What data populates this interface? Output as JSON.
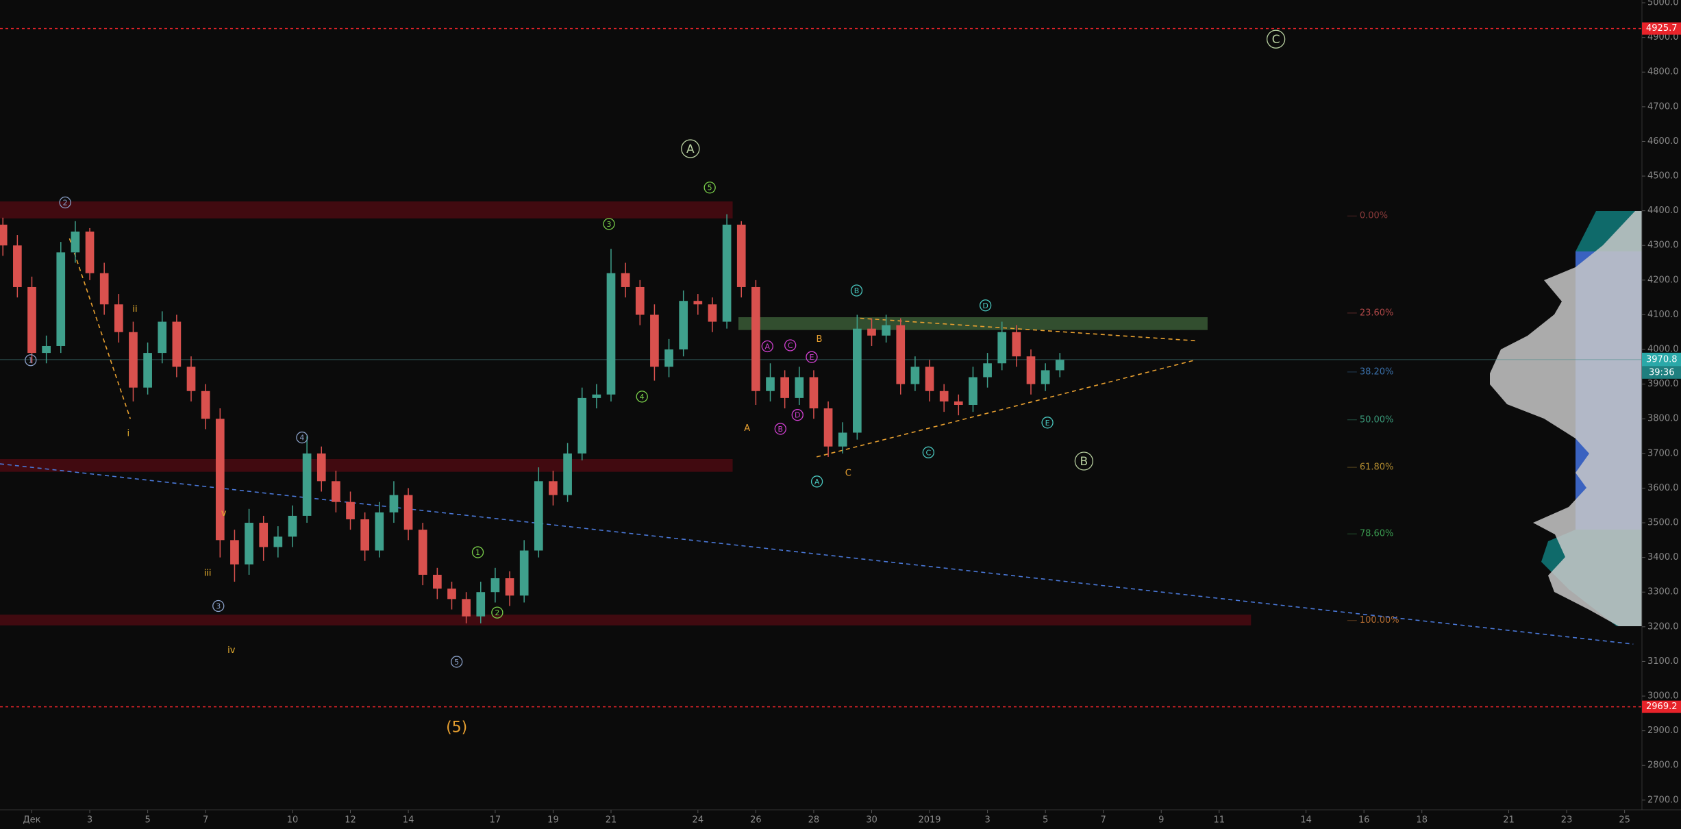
{
  "chart_data": {
    "type": "candlestick",
    "up_color": "#3fa08c",
    "down_color": "#d9514e",
    "background": "#0b0b0b",
    "x": [
      -1,
      -0.5,
      0,
      0.5,
      1,
      1.5,
      2,
      2.5,
      3,
      3.5,
      4,
      4.5,
      5,
      5.5,
      6,
      6.5,
      7,
      7.5,
      8,
      8.5,
      9,
      9.5,
      10,
      10.5,
      11,
      11.5,
      12,
      12.5,
      13,
      13.5,
      14,
      14.5,
      15,
      15.5,
      16,
      16.5,
      17,
      17.5,
      18,
      18.5,
      19,
      19.5,
      20,
      20.5,
      21,
      21.5,
      22,
      22.5,
      23,
      23.5,
      24,
      24.5,
      25,
      25.5,
      26,
      26.5,
      27,
      27.5,
      28,
      28.5,
      29,
      29.5,
      30,
      30.5,
      31,
      31.5,
      32,
      32.5,
      33,
      33.5,
      34,
      34.5,
      35,
      35.5
    ],
    "open": [
      4360,
      4300,
      4180,
      3990,
      4010,
      4280,
      4340,
      4220,
      4130,
      4050,
      3890,
      3990,
      4080,
      3950,
      3880,
      3800,
      3450,
      3380,
      3500,
      3430,
      3460,
      3520,
      3700,
      3620,
      3560,
      3510,
      3420,
      3530,
      3580,
      3480,
      3350,
      3310,
      3280,
      3230,
      3300,
      3340,
      3290,
      3420,
      3620,
      3580,
      3700,
      3860,
      3870,
      4220,
      4180,
      4100,
      3950,
      4000,
      4140,
      4130,
      4080,
      4360,
      4180,
      3880,
      3920,
      3860,
      3920,
      3830,
      3720,
      3760,
      4060,
      4040,
      4070,
      3900,
      3950,
      3880,
      3850,
      3840,
      3920,
      3960,
      4050,
      3980,
      3900,
      3940
    ],
    "high": [
      4380,
      4330,
      4210,
      4040,
      4310,
      4370,
      4350,
      4250,
      4160,
      4080,
      4020,
      4110,
      4100,
      3980,
      3900,
      3830,
      3480,
      3540,
      3520,
      3490,
      3550,
      3750,
      3720,
      3650,
      3590,
      3530,
      3560,
      3620,
      3600,
      3500,
      3370,
      3330,
      3300,
      3330,
      3370,
      3360,
      3450,
      3660,
      3650,
      3730,
      3890,
      3900,
      4290,
      4250,
      4200,
      4130,
      4030,
      4170,
      4160,
      4150,
      4390,
      4370,
      4200,
      3960,
      3940,
      3950,
      3940,
      3850,
      3790,
      4100,
      4090,
      4100,
      4090,
      3980,
      3970,
      3900,
      3870,
      3950,
      3990,
      4080,
      4070,
      4000,
      3960,
      3990
    ],
    "low": [
      4270,
      4150,
      3960,
      3960,
      3990,
      4250,
      4200,
      4100,
      4020,
      3850,
      3870,
      3960,
      3920,
      3850,
      3770,
      3400,
      3330,
      3350,
      3390,
      3400,
      3430,
      3500,
      3590,
      3530,
      3480,
      3390,
      3400,
      3500,
      3450,
      3320,
      3280,
      3250,
      3210,
      3210,
      3270,
      3260,
      3270,
      3400,
      3550,
      3560,
      3680,
      3830,
      3850,
      4150,
      4070,
      3910,
      3920,
      3980,
      4100,
      4050,
      4060,
      4150,
      3840,
      3850,
      3830,
      3840,
      3800,
      3690,
      3700,
      3740,
      4010,
      4020,
      3870,
      3880,
      3850,
      3820,
      3810,
      3820,
      3890,
      3940,
      3950,
      3870,
      3880,
      3920
    ],
    "close": [
      4300,
      4180,
      3990,
      4010,
      4280,
      4340,
      4220,
      4130,
      4050,
      3890,
      3990,
      4080,
      3950,
      3880,
      3800,
      3450,
      3380,
      3500,
      3430,
      3460,
      3520,
      3700,
      3620,
      3560,
      3510,
      3420,
      3530,
      3580,
      3480,
      3350,
      3310,
      3280,
      3230,
      3300,
      3340,
      3290,
      3420,
      3620,
      3580,
      3700,
      3860,
      3870,
      4220,
      4180,
      4100,
      3950,
      4000,
      4140,
      4130,
      4080,
      4360,
      4180,
      3880,
      3920,
      3860,
      3920,
      3830,
      3720,
      3760,
      4060,
      4040,
      4070,
      3900,
      3950,
      3880,
      3850,
      3840,
      3920,
      3960,
      4050,
      3980,
      3900,
      3940,
      3970
    ],
    "xlim": [
      -1.1,
      55.6
    ],
    "xticks": [
      {
        "value": 0,
        "label": "Дек"
      },
      {
        "value": 2,
        "label": "3"
      },
      {
        "value": 4,
        "label": "5"
      },
      {
        "value": 6,
        "label": "7"
      },
      {
        "value": 9,
        "label": "10"
      },
      {
        "value": 11,
        "label": "12"
      },
      {
        "value": 13,
        "label": "14"
      },
      {
        "value": 16,
        "label": "17"
      },
      {
        "value": 18,
        "label": "19"
      },
      {
        "value": 20,
        "label": "21"
      },
      {
        "value": 23,
        "label": "24"
      },
      {
        "value": 25,
        "label": "26"
      },
      {
        "value": 27,
        "label": "28"
      },
      {
        "value": 29,
        "label": "30"
      },
      {
        "value": 31,
        "label": "2019"
      },
      {
        "value": 33,
        "label": "3"
      },
      {
        "value": 35,
        "label": "5"
      },
      {
        "value": 37,
        "label": "7"
      },
      {
        "value": 39,
        "label": "9"
      },
      {
        "value": 41,
        "label": "11"
      },
      {
        "value": 44,
        "label": "14"
      },
      {
        "value": 46,
        "label": "16"
      },
      {
        "value": 48,
        "label": "18"
      },
      {
        "value": 51,
        "label": "21"
      },
      {
        "value": 53,
        "label": "23"
      },
      {
        "value": 55,
        "label": "25"
      }
    ],
    "ylim": [
      2672,
      5008
    ],
    "yticks": [
      {
        "value": 2700,
        "label": "2700.0"
      },
      {
        "value": 2800,
        "label": "2800.0"
      },
      {
        "value": 2900,
        "label": "2900.0"
      },
      {
        "value": 3000,
        "label": "3000.0"
      },
      {
        "value": 3100,
        "label": "3100.0"
      },
      {
        "value": 3200,
        "label": "3200.0"
      },
      {
        "value": 3300,
        "label": "3300.0"
      },
      {
        "value": 3400,
        "label": "3400.0"
      },
      {
        "value": 3500,
        "label": "3500.0"
      },
      {
        "value": 3600,
        "label": "3600.0"
      },
      {
        "value": 3700,
        "label": "3700.0"
      },
      {
        "value": 3800,
        "label": "3800.0"
      },
      {
        "value": 3900,
        "label": "3900.0"
      },
      {
        "value": 4000,
        "label": "4000.0"
      },
      {
        "value": 4100,
        "label": "4100.0"
      },
      {
        "value": 4200,
        "label": "4200.0"
      },
      {
        "value": 4300,
        "label": "4300.0"
      },
      {
        "value": 4400,
        "label": "4400.0"
      },
      {
        "value": 4500,
        "label": "4500.0"
      },
      {
        "value": 4600,
        "label": "4600.0"
      },
      {
        "value": 4700,
        "label": "4700.0"
      },
      {
        "value": 4800,
        "label": "4800.0"
      },
      {
        "value": 4900,
        "label": "4900.0"
      },
      {
        "value": 5000,
        "label": "5000.0"
      }
    ],
    "levels": [
      4925.7,
      2969.2
    ],
    "level_color": "#e8232a",
    "last": 3970.8,
    "timer": "39:36",
    "zones": [
      {
        "x": [
          -1.1,
          24.2
        ],
        "y": [
          4378,
          4427
        ],
        "color": "#4b0a12"
      },
      {
        "x": [
          -1.1,
          24.2
        ],
        "y": [
          3647,
          3684
        ],
        "color": "#4b0a12"
      },
      {
        "x": [
          -1.1,
          42.1
        ],
        "y": [
          3204,
          3235
        ],
        "color": "#4b0a12"
      },
      {
        "x": [
          24.4,
          40.6
        ],
        "y": [
          4056,
          4093
        ],
        "color": "#3a5a36"
      }
    ],
    "lines": [
      {
        "x": [
          -1.1,
          55.3
        ],
        "y": [
          3670,
          3150
        ],
        "color": "#4a78d8"
      },
      {
        "x": [
          28.6,
          40.2
        ],
        "y": [
          4090,
          4025
        ],
        "color": "#e8a030"
      },
      {
        "x": [
          27.1,
          40.2
        ],
        "y": [
          3690,
          3970
        ],
        "color": "#e8a030"
      },
      {
        "x": [
          1.3,
          3.4
        ],
        "y": [
          4320,
          3800
        ],
        "color": "#e8a030"
      }
    ],
    "fib": [
      {
        "label": "0.00%",
        "price": 4385,
        "color": "#8a3a3a"
      },
      {
        "label": "23.60%",
        "price": 4105,
        "color": "#b04848"
      },
      {
        "label": "38.20%",
        "price": 3935,
        "color": "#3a6fa8"
      },
      {
        "label": "50.00%",
        "price": 3797,
        "color": "#3a9a7a"
      },
      {
        "label": "61.80%",
        "price": 3660,
        "color": "#b08a30"
      },
      {
        "label": "78.60%",
        "price": 3468,
        "color": "#3a9a50"
      },
      {
        "label": "100.00%",
        "price": 3218,
        "color": "#b06a30"
      }
    ],
    "fib_x": 45.85,
    "annotations": [
      {
        "text": "1",
        "x": -0.04,
        "y": 3969,
        "color": "#8aa0c8",
        "circled": true
      },
      {
        "text": "2",
        "x": 1.15,
        "y": 4424,
        "color": "#8aa0c8",
        "circled": true
      },
      {
        "text": "ii",
        "x": 3.56,
        "y": 4118,
        "color": "#e8b030",
        "circled": false
      },
      {
        "text": "i",
        "x": 3.33,
        "y": 3759,
        "color": "#e8b030",
        "circled": false
      },
      {
        "text": "v",
        "x": 6.63,
        "y": 3529,
        "color": "#e8b030",
        "circled": false
      },
      {
        "text": "iii",
        "x": 6.07,
        "y": 3356,
        "color": "#e8b030",
        "circled": false
      },
      {
        "text": "3",
        "x": 6.44,
        "y": 3260,
        "color": "#8aa0c8",
        "circled": true
      },
      {
        "text": "iv",
        "x": 6.89,
        "y": 3133,
        "color": "#e8b030",
        "circled": false
      },
      {
        "text": "4",
        "x": 9.33,
        "y": 3746,
        "color": "#8aa0c8",
        "circled": true
      },
      {
        "text": "5",
        "x": 14.67,
        "y": 3099,
        "color": "#8aa0c8",
        "circled": true
      },
      {
        "text": "1",
        "x": 15.4,
        "y": 3415,
        "color": "#7ad04a",
        "circled": true
      },
      {
        "text": "2",
        "x": 16.07,
        "y": 3241,
        "color": "#7ad04a",
        "circled": true
      },
      {
        "text": "3",
        "x": 19.93,
        "y": 4362,
        "color": "#7ad04a",
        "circled": true
      },
      {
        "text": "4",
        "x": 21.07,
        "y": 3864,
        "color": "#7ad04a",
        "circled": true
      },
      {
        "text": "5",
        "x": 23.41,
        "y": 4467,
        "color": "#7ad04a",
        "circled": true
      },
      {
        "text": "A",
        "x": 22.74,
        "y": 4579,
        "color": "#b8d0a0",
        "circled": true,
        "big": true
      },
      {
        "text": "A",
        "x": 24.7,
        "y": 3774,
        "color": "#e8a030",
        "circled": false
      },
      {
        "text": "A",
        "x": 25.4,
        "y": 4009,
        "color": "#d040d0",
        "circled": true
      },
      {
        "text": "B",
        "x": 25.85,
        "y": 3771,
        "color": "#d040d0",
        "circled": true
      },
      {
        "text": "C",
        "x": 26.19,
        "y": 4012,
        "color": "#d040d0",
        "circled": true
      },
      {
        "text": "D",
        "x": 26.44,
        "y": 3811,
        "color": "#d040d0",
        "circled": true
      },
      {
        "text": "E",
        "x": 26.93,
        "y": 3978,
        "color": "#d040d0",
        "circled": true
      },
      {
        "text": "B",
        "x": 27.19,
        "y": 4031,
        "color": "#e8a030",
        "circled": false
      },
      {
        "text": "C",
        "x": 28.19,
        "y": 3644,
        "color": "#e8a030",
        "circled": false
      },
      {
        "text": "A",
        "x": 27.11,
        "y": 3619,
        "color": "#4ac8c0",
        "circled": true
      },
      {
        "text": "B",
        "x": 28.48,
        "y": 4170,
        "color": "#4ac8c0",
        "circled": true
      },
      {
        "text": "C",
        "x": 30.96,
        "y": 3703,
        "color": "#4ac8c0",
        "circled": true
      },
      {
        "text": "D",
        "x": 32.93,
        "y": 4127,
        "color": "#4ac8c0",
        "circled": true
      },
      {
        "text": "E",
        "x": 35.07,
        "y": 3789,
        "color": "#4ac8c0",
        "circled": true
      },
      {
        "text": "B",
        "x": 36.33,
        "y": 3678,
        "color": "#b8d0a0",
        "circled": true,
        "big": true
      },
      {
        "text": "C",
        "x": 42.96,
        "y": 4895,
        "color": "#b8d0a0",
        "circled": true,
        "big": true
      },
      {
        "text": "(5)",
        "x": 14.67,
        "y": 2910,
        "color": "#e8a030",
        "circled": false,
        "big": true
      }
    ]
  }
}
